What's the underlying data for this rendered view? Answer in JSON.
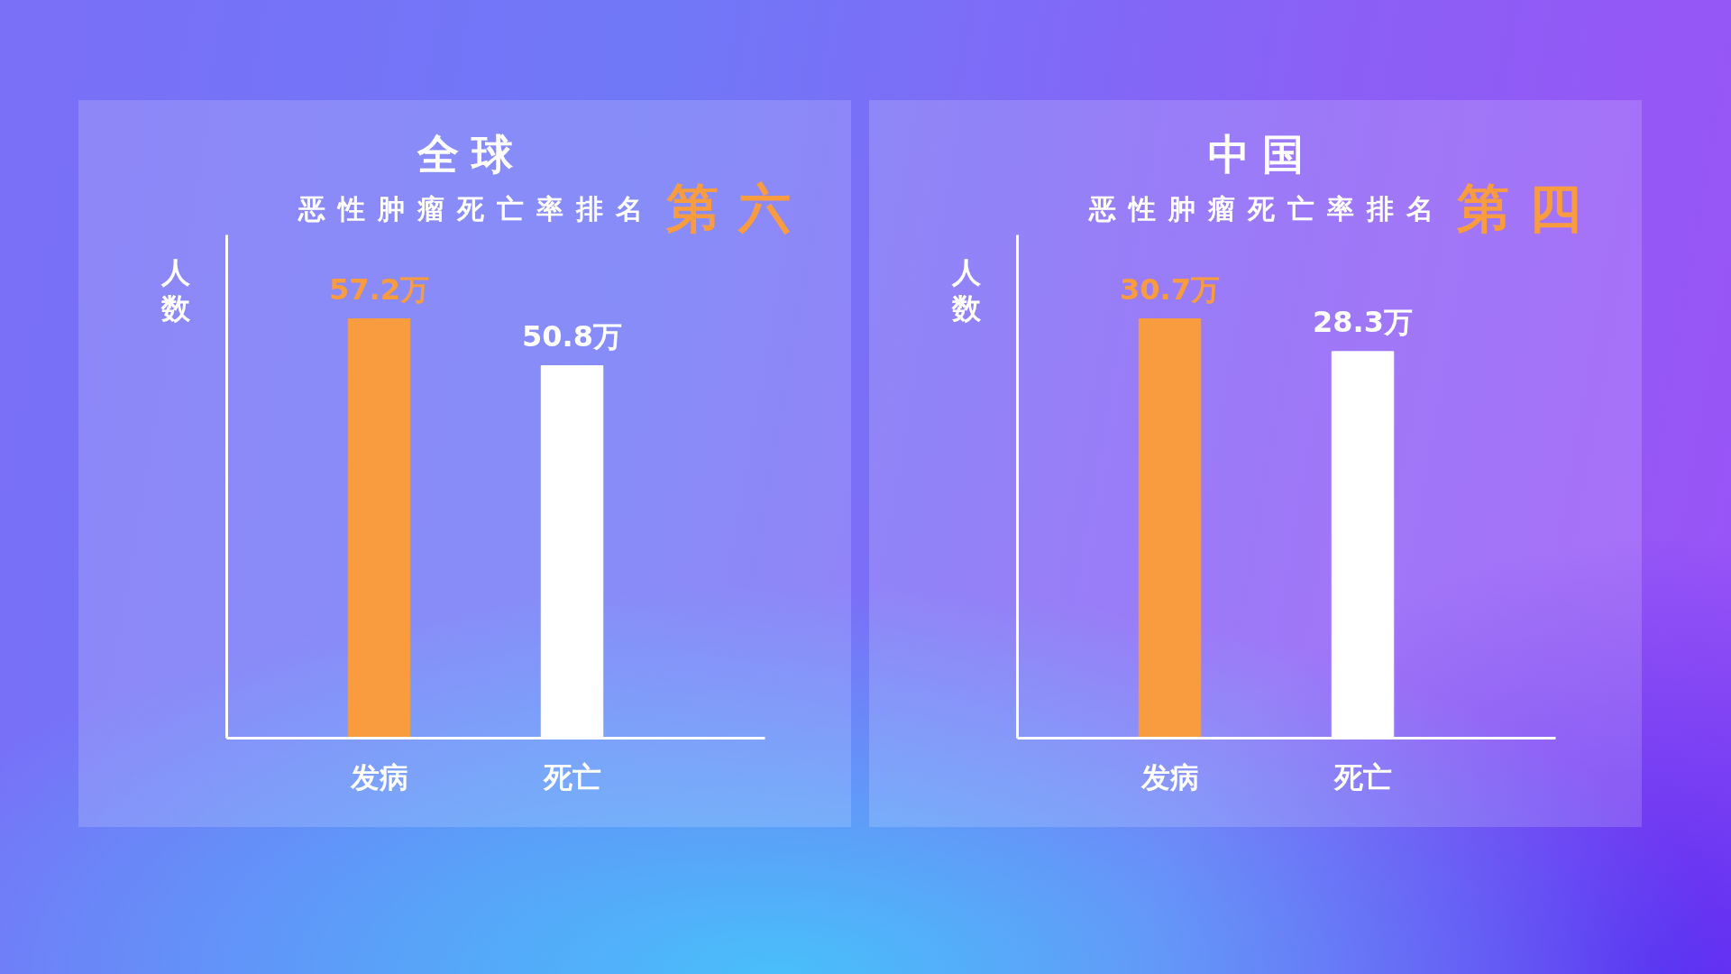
{
  "chart_data": [
    {
      "type": "bar",
      "title": "全球",
      "subtitle": "恶性肿瘤死亡率排名",
      "annotations": [
        "第六"
      ],
      "ylabel": "人数",
      "categories": [
        "发病",
        "死亡"
      ],
      "values": [
        57.2,
        50.8
      ],
      "colors": [
        "#f99c3f",
        "#ffffff"
      ],
      "value_labels": [
        "57.2万",
        "50.8万"
      ],
      "tick_labels": "x"
    },
    {
      "type": "bar",
      "title": "中国",
      "subtitle": "恶性肿瘤死亡率排名",
      "annotations": [
        "第四"
      ],
      "ylabel": "人数",
      "categories": [
        "发病",
        "死亡"
      ],
      "values": [
        30.7,
        28.3
      ],
      "colors": [
        "#f99c3f",
        "#ffffff"
      ],
      "value_labels": [
        "30.7万",
        "28.3万"
      ],
      "tick_labels": "x"
    }
  ]
}
